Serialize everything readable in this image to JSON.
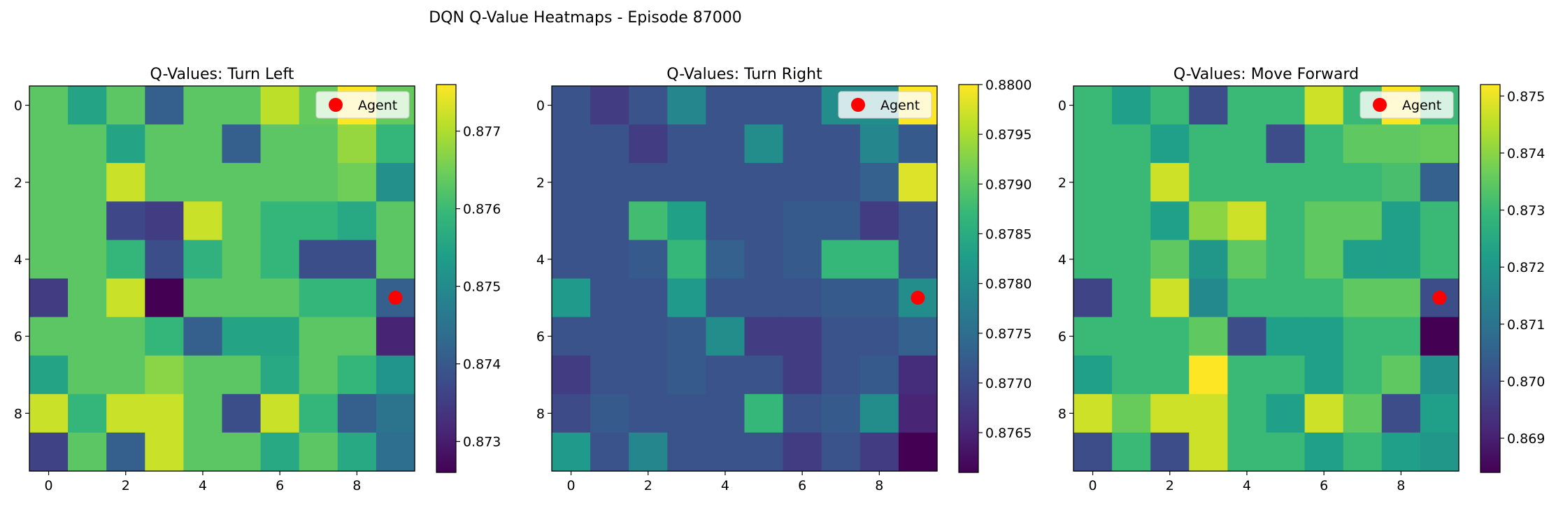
{
  "figure": {
    "suptitle": "DQN Q-Value Heatmaps - Episode 87000"
  },
  "chart_data": [
    {
      "type": "heatmap",
      "title": "Q-Values: Turn Left",
      "colormap": "viridis",
      "vmin": 0.8726,
      "vmax": 0.8776,
      "colorbar_ticks": [
        "0.873",
        "0.874",
        "0.875",
        "0.876",
        "0.877"
      ],
      "colorbar_tick_values": [
        0.873,
        0.874,
        0.875,
        0.876,
        0.877
      ],
      "x_ticks": [
        "0",
        "2",
        "4",
        "6",
        "8"
      ],
      "y_ticks": [
        "0",
        "2",
        "4",
        "6",
        "8"
      ],
      "legend": {
        "label": "Agent",
        "placement": "upper right"
      },
      "agent": {
        "col": 9,
        "row": 5,
        "color": "#ff0000"
      },
      "grid": [
        [
          0.8763,
          0.8755,
          0.8763,
          0.8741,
          0.8763,
          0.8763,
          0.8771,
          0.8764,
          0.8776,
          0.8764
        ],
        [
          0.8763,
          0.8763,
          0.8755,
          0.8763,
          0.8763,
          0.8741,
          0.8763,
          0.8763,
          0.8768,
          0.8759
        ],
        [
          0.8763,
          0.8763,
          0.8772,
          0.8763,
          0.8763,
          0.8763,
          0.8763,
          0.8763,
          0.8765,
          0.8751
        ],
        [
          0.8763,
          0.8763,
          0.8737,
          0.8735,
          0.8772,
          0.8763,
          0.8759,
          0.8759,
          0.8756,
          0.8763
        ],
        [
          0.8763,
          0.8763,
          0.8759,
          0.8738,
          0.8758,
          0.8763,
          0.8759,
          0.8738,
          0.8738,
          0.8763
        ],
        [
          0.8735,
          0.8763,
          0.8772,
          0.8726,
          0.8763,
          0.8763,
          0.8763,
          0.8759,
          0.8759,
          0.8741
        ],
        [
          0.8763,
          0.8763,
          0.8763,
          0.8759,
          0.8741,
          0.8755,
          0.8755,
          0.8763,
          0.8763,
          0.8731
        ],
        [
          0.8755,
          0.8763,
          0.8763,
          0.8767,
          0.8763,
          0.8763,
          0.8756,
          0.8763,
          0.8759,
          0.8752
        ],
        [
          0.8772,
          0.8759,
          0.8772,
          0.8772,
          0.8763,
          0.8738,
          0.8772,
          0.8759,
          0.8741,
          0.8745
        ],
        [
          0.8736,
          0.8763,
          0.8741,
          0.8772,
          0.8763,
          0.8763,
          0.8756,
          0.8763,
          0.8756,
          0.8744
        ]
      ]
    },
    {
      "type": "heatmap",
      "title": "Q-Values: Turn Right",
      "colormap": "viridis",
      "vmin": 0.8761,
      "vmax": 0.88,
      "colorbar_ticks": [
        "0.8765",
        "0.8770",
        "0.8775",
        "0.8780",
        "0.8785",
        "0.8790",
        "0.8795",
        "0.8800"
      ],
      "colorbar_tick_values": [
        0.8765,
        0.877,
        0.8775,
        0.878,
        0.8785,
        0.879,
        0.8795,
        0.88
      ],
      "x_ticks": [
        "0",
        "2",
        "4",
        "6",
        "8"
      ],
      "y_ticks": [
        "0",
        "2",
        "4",
        "6",
        "8"
      ],
      "legend": {
        "label": "Agent",
        "placement": "upper right"
      },
      "agent": {
        "col": 9,
        "row": 5,
        "color": "#ff0000"
      },
      "grid": [
        [
          0.8771,
          0.8768,
          0.8771,
          0.8779,
          0.8771,
          0.8771,
          0.8771,
          0.878,
          0.878,
          0.88
        ],
        [
          0.8771,
          0.8771,
          0.8768,
          0.8771,
          0.8771,
          0.878,
          0.8771,
          0.8771,
          0.8779,
          0.8772
        ],
        [
          0.8771,
          0.8771,
          0.8771,
          0.8771,
          0.8771,
          0.8771,
          0.8771,
          0.8771,
          0.8773,
          0.8798
        ],
        [
          0.8771,
          0.8771,
          0.8788,
          0.8783,
          0.8771,
          0.8771,
          0.8772,
          0.8772,
          0.8768,
          0.8771
        ],
        [
          0.8771,
          0.8771,
          0.8772,
          0.8787,
          0.8773,
          0.8771,
          0.8772,
          0.8787,
          0.8787,
          0.8771
        ],
        [
          0.8782,
          0.8771,
          0.8771,
          0.8782,
          0.8771,
          0.8771,
          0.8771,
          0.8772,
          0.8772,
          0.878
        ],
        [
          0.8771,
          0.8771,
          0.8771,
          0.8772,
          0.878,
          0.8768,
          0.8768,
          0.8771,
          0.8771,
          0.8773
        ],
        [
          0.8768,
          0.8771,
          0.8771,
          0.8772,
          0.8771,
          0.8771,
          0.8768,
          0.8771,
          0.8772,
          0.8766
        ],
        [
          0.877,
          0.8772,
          0.8771,
          0.8771,
          0.8771,
          0.8787,
          0.8771,
          0.8772,
          0.878,
          0.8765
        ],
        [
          0.8782,
          0.8771,
          0.8779,
          0.8771,
          0.8771,
          0.8771,
          0.8768,
          0.8771,
          0.8768,
          0.8761
        ]
      ]
    },
    {
      "type": "heatmap",
      "title": "Q-Values: Move Forward",
      "colormap": "viridis",
      "vmin": 0.8684,
      "vmax": 0.8752,
      "colorbar_ticks": [
        "0.869",
        "0.870",
        "0.871",
        "0.872",
        "0.873",
        "0.874",
        "0.875"
      ],
      "colorbar_tick_values": [
        0.869,
        0.87,
        0.871,
        0.872,
        0.873,
        0.874,
        0.875
      ],
      "x_ticks": [
        "0",
        "2",
        "4",
        "6",
        "8"
      ],
      "y_ticks": [
        "0",
        "2",
        "4",
        "6",
        "8"
      ],
      "legend": {
        "label": "Agent",
        "placement": "upper right"
      },
      "agent": {
        "col": 9,
        "row": 5,
        "color": "#ff0000"
      },
      "grid": [
        [
          0.873,
          0.8722,
          0.873,
          0.87,
          0.873,
          0.873,
          0.8747,
          0.873,
          0.8752,
          0.873
        ],
        [
          0.873,
          0.873,
          0.8722,
          0.873,
          0.873,
          0.87,
          0.873,
          0.8735,
          0.8735,
          0.8736
        ],
        [
          0.873,
          0.873,
          0.8747,
          0.873,
          0.873,
          0.873,
          0.873,
          0.873,
          0.8732,
          0.8705
        ],
        [
          0.873,
          0.873,
          0.8722,
          0.874,
          0.8747,
          0.873,
          0.8735,
          0.8735,
          0.8722,
          0.873
        ],
        [
          0.873,
          0.873,
          0.8735,
          0.872,
          0.8735,
          0.873,
          0.8735,
          0.8722,
          0.8722,
          0.873
        ],
        [
          0.8698,
          0.873,
          0.8747,
          0.8716,
          0.873,
          0.873,
          0.873,
          0.8735,
          0.8735,
          0.87
        ],
        [
          0.873,
          0.873,
          0.873,
          0.8735,
          0.87,
          0.8722,
          0.8722,
          0.873,
          0.873,
          0.8684
        ],
        [
          0.8722,
          0.873,
          0.873,
          0.8752,
          0.873,
          0.873,
          0.8722,
          0.873,
          0.8735,
          0.8718
        ],
        [
          0.8747,
          0.8736,
          0.8747,
          0.8747,
          0.873,
          0.8722,
          0.8747,
          0.8735,
          0.87,
          0.8722
        ],
        [
          0.87,
          0.873,
          0.87,
          0.8747,
          0.873,
          0.873,
          0.8722,
          0.873,
          0.8722,
          0.872
        ]
      ]
    }
  ]
}
